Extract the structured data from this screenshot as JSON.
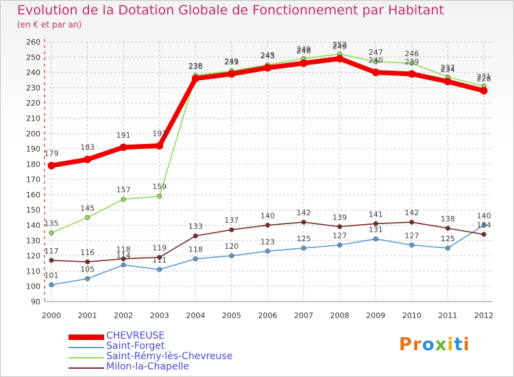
{
  "header": {
    "title": "Evolution de la Dotation Globale de Fonctionnement par Habitant",
    "subtitle": "(en € et par an)"
  },
  "logo": {
    "text": "Proxiti",
    "colors": [
      "#e8731a",
      "#e8731a",
      "#2d8fd4",
      "#6ab72e",
      "#e8b01a",
      "#2d8fd4",
      "#e8731a"
    ]
  },
  "chart_data": {
    "type": "line",
    "x": [
      "2000",
      "2001",
      "2002",
      "2003",
      "2004",
      "2005",
      "2006",
      "2007",
      "2008",
      "2009",
      "2010",
      "2011",
      "2012"
    ],
    "ylim": [
      90,
      260
    ],
    "yticks": [
      "90",
      "100",
      "110",
      "120",
      "130",
      "140",
      "150",
      "160",
      "170",
      "180",
      "190",
      "200",
      "210",
      "220",
      "230",
      "240",
      "250",
      "260"
    ],
    "grid": true,
    "legend_position": "bottom-left",
    "series": [
      {
        "name": "CHEVREUSE",
        "color": "#ee0000",
        "values": [
          179,
          183,
          191,
          192,
          236,
          239,
          243,
          246,
          249,
          240,
          239,
          234,
          228
        ]
      },
      {
        "name": "Saint-Forget",
        "color": "#5b9bd0",
        "values": [
          101,
          105,
          114,
          111,
          118,
          120,
          123,
          125,
          127,
          131,
          127,
          125,
          140
        ]
      },
      {
        "name": "Saint-Rémy-lès-Chevreuse",
        "color": "#8edc5a",
        "values": [
          135,
          145,
          157,
          159,
          238,
          241,
          245,
          249,
          252,
          247,
          246,
          237,
          231
        ]
      },
      {
        "name": "Milon-la-Chapelle",
        "color": "#7a2a2a",
        "values": [
          117,
          116,
          118,
          119,
          133,
          137,
          140,
          142,
          139,
          141,
          142,
          138,
          134
        ]
      }
    ]
  }
}
